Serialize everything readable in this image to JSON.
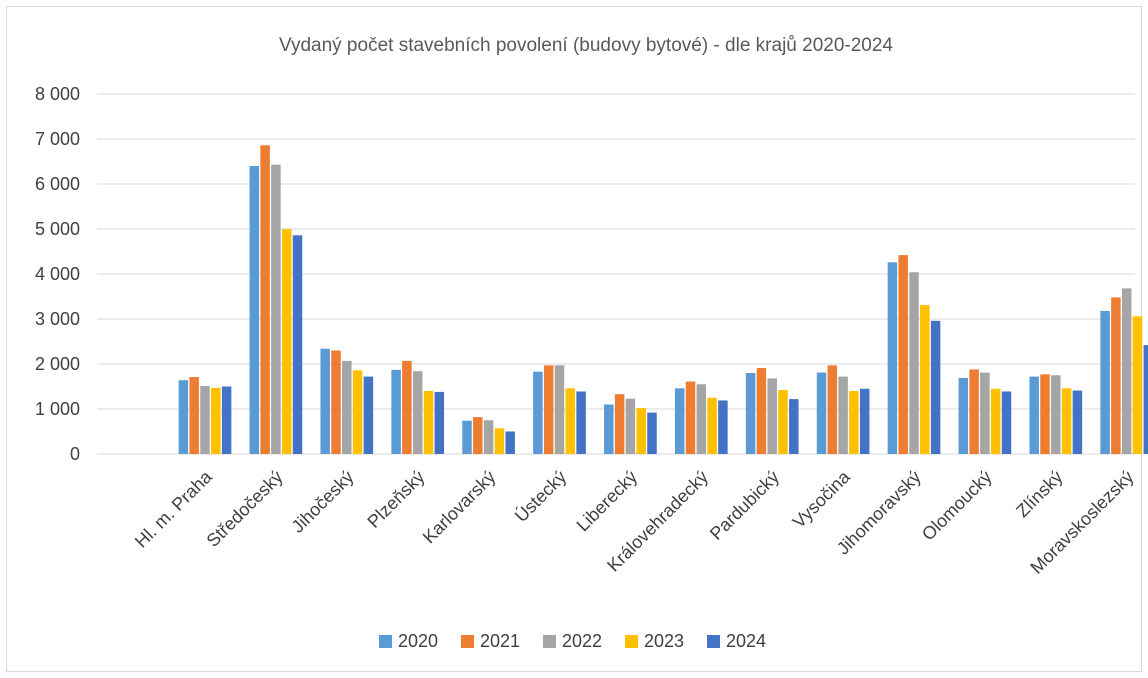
{
  "chart_data": {
    "type": "bar",
    "title": "Vydaný počet stavebních povolení (budovy bytové) - dle krajů 2020-2024",
    "xlabel": "",
    "ylabel": "",
    "ylim": [
      0,
      8000
    ],
    "yticks": [
      0,
      1000,
      2000,
      3000,
      4000,
      5000,
      6000,
      7000,
      8000
    ],
    "ytick_labels": [
      "0",
      "1 000",
      "2 000",
      "3 000",
      "4 000",
      "5 000",
      "6 000",
      "7 000",
      "8 000"
    ],
    "grid": true,
    "legend_position": "bottom",
    "categories": [
      "Hl. m. Praha",
      "Středočeský",
      "Jihočeský",
      "Plzeňský",
      "Karlovarský",
      "Ústecký",
      "Liberecký",
      "Královehradecký",
      "Pardubický",
      "Vysočina",
      "Jihomoravský",
      "Olomoucký",
      "Zlínský",
      "Moravskoslezský"
    ],
    "series": [
      {
        "name": "2020",
        "color": "#5b9bd5",
        "values": [
          1640,
          6400,
          2340,
          1870,
          740,
          1830,
          1100,
          1460,
          1800,
          1810,
          4260,
          1690,
          1720,
          3180
        ]
      },
      {
        "name": "2021",
        "color": "#ed7d31",
        "values": [
          1710,
          6860,
          2300,
          2070,
          820,
          1970,
          1330,
          1610,
          1910,
          1970,
          4420,
          1880,
          1770,
          3480
        ]
      },
      {
        "name": "2022",
        "color": "#a5a5a5",
        "values": [
          1510,
          6430,
          2070,
          1840,
          750,
          1970,
          1230,
          1550,
          1680,
          1720,
          4040,
          1810,
          1750,
          3680
        ]
      },
      {
        "name": "2023",
        "color": "#ffc000",
        "values": [
          1470,
          5000,
          1860,
          1400,
          570,
          1460,
          1020,
          1250,
          1420,
          1400,
          3310,
          1450,
          1460,
          3060
        ]
      },
      {
        "name": "2024",
        "color": "#4472c4",
        "values": [
          1500,
          4860,
          1720,
          1380,
          500,
          1390,
          920,
          1190,
          1220,
          1450,
          2960,
          1390,
          1410,
          2420
        ]
      }
    ]
  }
}
